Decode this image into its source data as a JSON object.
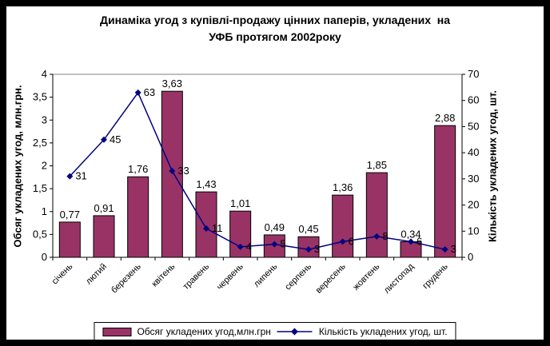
{
  "title_lines": [
    "Динаміка угод з купівлі-продажу цінних паперів, укладених  на",
    "УФБ протягом 2002року"
  ],
  "colors": {
    "bar_fill": "#993366",
    "bar_border": "#000000",
    "line": "#000080",
    "gridline": "#808080",
    "axis": "#000000",
    "background": "#ffffff",
    "frame_border": "#000000"
  },
  "chart_data": {
    "type": "bar",
    "subtype": "combo-bar-line",
    "title": "Динаміка угод з купівлі-продажу цінних паперів, укладених  на УФБ протягом 2002року",
    "categories": [
      "січень",
      "лютий",
      "березень",
      "квітень",
      "травень",
      "червень",
      "липень",
      "серпень",
      "вересень",
      "жовтень",
      "листопад",
      "грудень"
    ],
    "series": [
      {
        "name": "Обсяг укладених угод,млн.грн",
        "type": "bar",
        "axis": "left",
        "color": "#993366",
        "values": [
          0.77,
          0.91,
          1.76,
          3.63,
          1.43,
          1.01,
          0.49,
          0.45,
          1.36,
          1.85,
          0.34,
          2.88
        ],
        "labels": [
          "0,77",
          "0,91",
          "1,76",
          "3,63",
          "1,43",
          "1,01",
          "0,49",
          "0,45",
          "1,36",
          "1,85",
          "0,34",
          "2,88"
        ]
      },
      {
        "name": "Кількість укладених угод, шт.",
        "type": "line",
        "axis": "right",
        "color": "#000080",
        "marker": "diamond",
        "values": [
          31,
          45,
          63,
          33,
          11,
          4,
          5,
          3,
          6,
          8,
          6,
          3
        ],
        "labels": [
          "31",
          "45",
          "63",
          "33",
          "11",
          "4",
          "5",
          "3",
          "6",
          "8",
          "6",
          "3"
        ]
      }
    ],
    "left_axis": {
      "title": "Обсяг укладених угод, млн.грн.",
      "min": 0,
      "max": 4,
      "step": 0.5,
      "tick_labels": [
        "0",
        "0,5",
        "1",
        "1,5",
        "2",
        "2,5",
        "3",
        "3,5",
        "4"
      ]
    },
    "right_axis": {
      "title": "Кількість укладених угод, шт.",
      "min": 0,
      "max": 70,
      "step": 10,
      "tick_labels": [
        "0",
        "10",
        "20",
        "30",
        "40",
        "50",
        "60",
        "70"
      ]
    },
    "x_axis": {
      "label_rotation": -45
    },
    "grid": "top-line-only",
    "legend_position": "bottom"
  }
}
